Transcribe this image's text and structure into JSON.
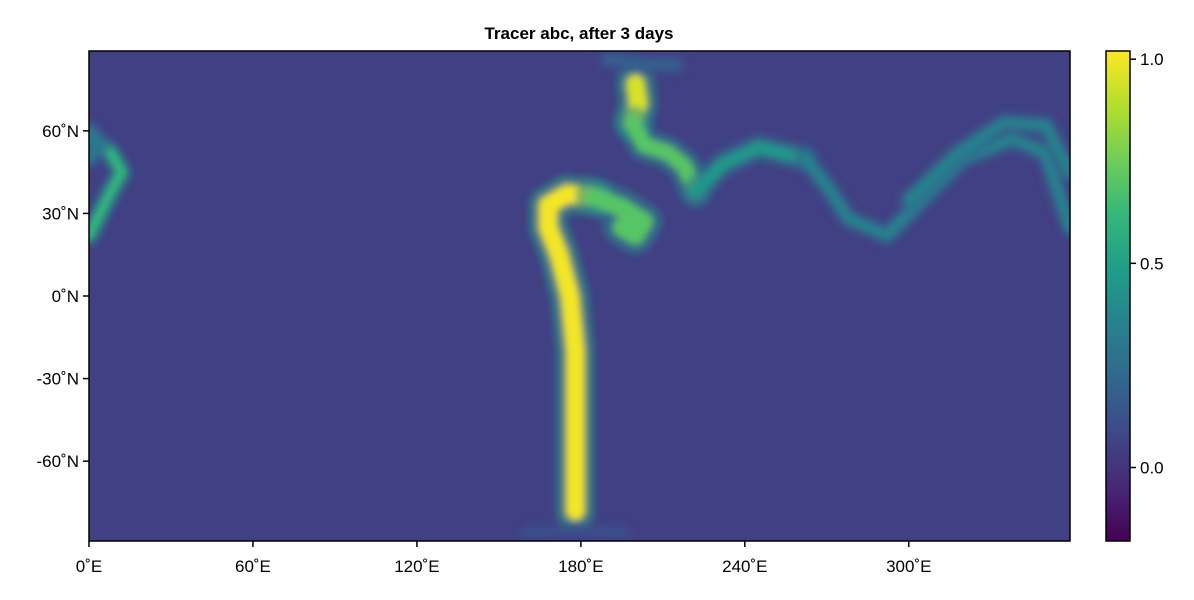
{
  "chart_data": {
    "type": "heatmap",
    "title": "Tracer abc, after 3 days",
    "xlabel": "",
    "ylabel": "",
    "x_range": [
      0,
      359
    ],
    "y_range": [
      -89,
      89
    ],
    "x_ticks": [
      {
        "value": 0,
        "label": "0˚E"
      },
      {
        "value": 60,
        "label": "60˚E"
      },
      {
        "value": 120,
        "label": "120˚E"
      },
      {
        "value": 180,
        "label": "180˚E"
      },
      {
        "value": 240,
        "label": "240˚E"
      },
      {
        "value": 300,
        "label": "300˚E"
      }
    ],
    "y_ticks": [
      {
        "value": 60,
        "label": "60˚N"
      },
      {
        "value": 30,
        "label": "30˚N"
      },
      {
        "value": 0,
        "label": "0˚N"
      },
      {
        "value": -30,
        "label": "-30˚N"
      },
      {
        "value": -60,
        "label": "-60˚N"
      }
    ],
    "colorbar": {
      "colormap": "viridis",
      "range": [
        -0.18,
        1.02
      ],
      "ticks": [
        {
          "value": 1.0,
          "label": "1.0"
        },
        {
          "value": 0.5,
          "label": "0.5"
        },
        {
          "value": 0.0,
          "label": "0.0"
        }
      ],
      "stops": [
        "#440154",
        "#482878",
        "#3e4989",
        "#31688e",
        "#26828e",
        "#1f9e89",
        "#35b779",
        "#6ece58",
        "#b5de2b",
        "#fde725"
      ]
    },
    "background_value": 0.05,
    "features": [
      {
        "kind": "stroke",
        "value": 1.0,
        "width_deg": 7,
        "points": [
          [
            178,
            -78
          ],
          [
            178,
            -60
          ],
          [
            178,
            -40
          ],
          [
            178,
            -20
          ],
          [
            176,
            0
          ],
          [
            172,
            15
          ],
          [
            168,
            25
          ],
          [
            168,
            33
          ],
          [
            175,
            37
          ],
          [
            185,
            36
          ]
        ]
      },
      {
        "kind": "stroke",
        "value": 0.7,
        "width_deg": 7,
        "points": [
          [
            185,
            36
          ],
          [
            195,
            32
          ],
          [
            203,
            27
          ],
          [
            200,
            22
          ],
          [
            195,
            25
          ]
        ]
      },
      {
        "kind": "stroke",
        "value": 0.95,
        "width_deg": 7,
        "points": [
          [
            200,
            77
          ],
          [
            201,
            70
          ],
          [
            199,
            63
          ]
        ]
      },
      {
        "kind": "stroke",
        "value": 0.7,
        "width_deg": 6,
        "points": [
          [
            199,
            63
          ],
          [
            203,
            55
          ],
          [
            212,
            52
          ],
          [
            218,
            47
          ],
          [
            222,
            38
          ]
        ]
      },
      {
        "kind": "stroke",
        "value": 0.45,
        "width_deg": 5,
        "points": [
          [
            222,
            38
          ],
          [
            232,
            48
          ],
          [
            245,
            54
          ],
          [
            262,
            50
          ]
        ]
      },
      {
        "kind": "stroke",
        "value": 0.35,
        "width_deg": 4,
        "points": [
          [
            262,
            50
          ],
          [
            270,
            40
          ],
          [
            278,
            28
          ],
          [
            292,
            22
          ],
          [
            305,
            35
          ],
          [
            320,
            50
          ],
          [
            338,
            57
          ],
          [
            350,
            52
          ],
          [
            359,
            25
          ]
        ]
      },
      {
        "kind": "stroke",
        "value": 0.35,
        "width_deg": 4,
        "points": [
          [
            300,
            35
          ],
          [
            318,
            52
          ],
          [
            335,
            63
          ],
          [
            350,
            62
          ],
          [
            359,
            45
          ]
        ]
      },
      {
        "kind": "stroke",
        "value": 0.6,
        "width_deg": 4,
        "points": [
          [
            0,
            22
          ],
          [
            3,
            28
          ],
          [
            8,
            38
          ],
          [
            12,
            45
          ],
          [
            8,
            52
          ],
          [
            0,
            58
          ]
        ]
      },
      {
        "kind": "stroke",
        "value": 0.3,
        "width_deg": 4,
        "points": [
          [
            0,
            60
          ],
          [
            4,
            55
          ],
          [
            0,
            50
          ]
        ]
      },
      {
        "kind": "stroke",
        "value": 0.18,
        "width_deg": 4,
        "points": [
          [
            190,
            86
          ],
          [
            205,
            84
          ],
          [
            215,
            84
          ]
        ]
      },
      {
        "kind": "stroke",
        "value": 0.12,
        "width_deg": 3,
        "points": [
          [
            160,
            -86
          ],
          [
            178,
            -85
          ],
          [
            196,
            -86
          ]
        ]
      }
    ]
  }
}
